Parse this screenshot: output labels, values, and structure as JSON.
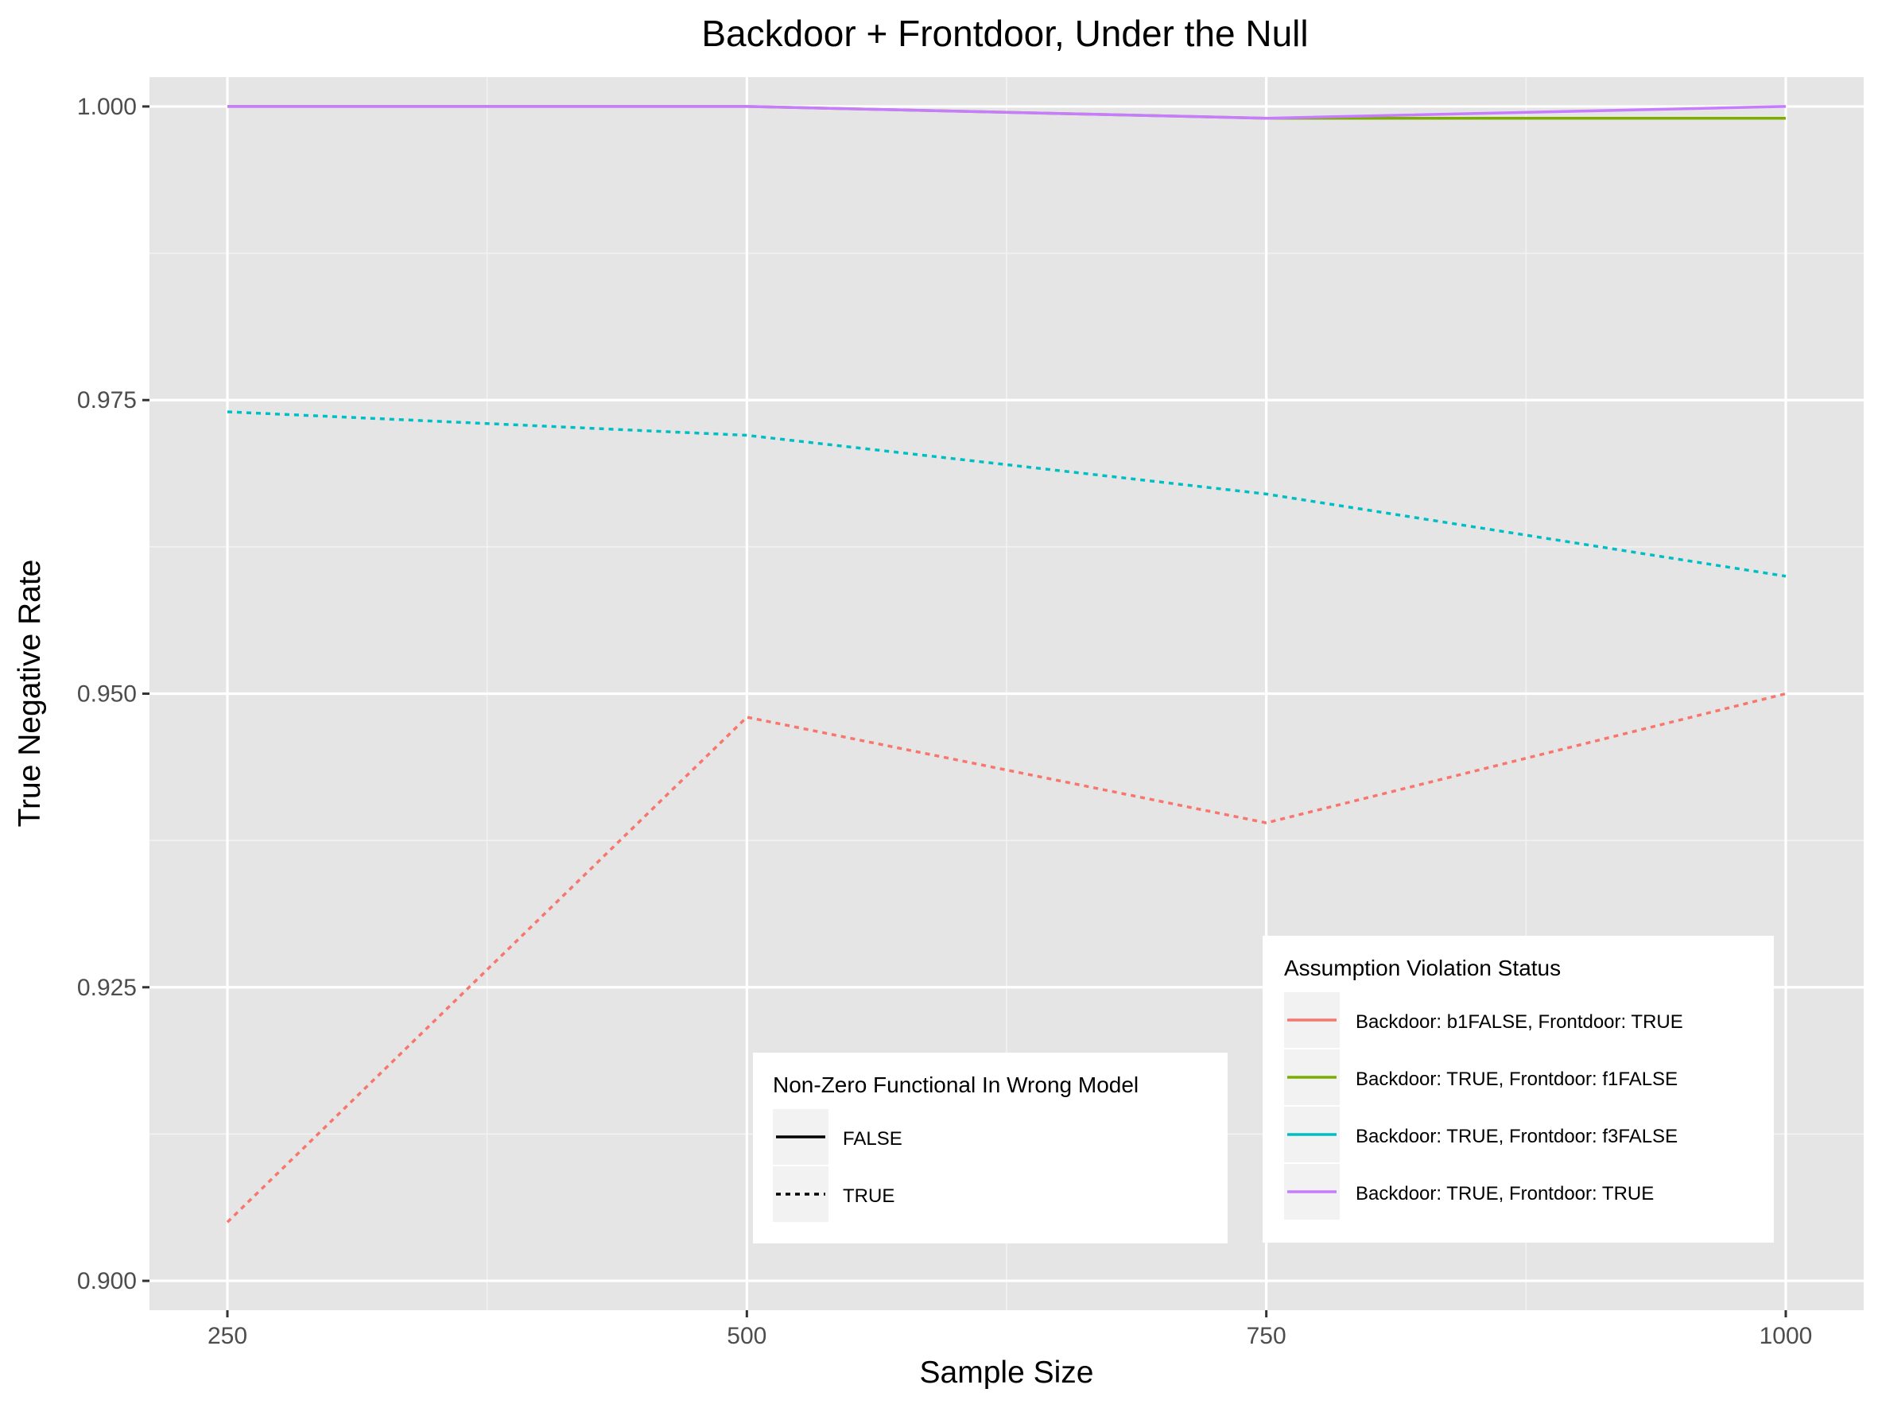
{
  "chart_data": {
    "type": "line",
    "title": "Backdoor + Frontdoor, Under the Null",
    "xlabel": "Sample Size",
    "ylabel": "True Negative Rate",
    "x": [
      250,
      500,
      750,
      1000
    ],
    "xlim": [
      212.5,
      1037.5
    ],
    "ylim": [
      0.8975,
      1.0025
    ],
    "x_ticks": [
      250,
      500,
      750,
      1000
    ],
    "x_tick_labels": [
      "250",
      "500",
      "750",
      "1000"
    ],
    "y_ticks": [
      0.9,
      0.925,
      0.95,
      0.975,
      1.0
    ],
    "y_tick_labels": [
      "0.900",
      "0.925",
      "0.950",
      "0.975",
      "1.000"
    ],
    "grid": true,
    "panel_background": "#e5e5e5",
    "series": [
      {
        "name": "Backdoor: b1FALSE, Frontdoor: TRUE",
        "color": "#F8766D",
        "linetype": "dotted",
        "values": [
          0.905,
          0.948,
          0.939,
          0.95
        ]
      },
      {
        "name": "Backdoor: TRUE, Frontdoor: f1FALSE",
        "color": "#7CAE00",
        "linetype": "solid",
        "values": [
          1.0,
          1.0,
          0.999,
          0.999
        ]
      },
      {
        "name": "Backdoor: TRUE, Frontdoor: f3FALSE",
        "color": "#00BFC4",
        "linetype": "dotted",
        "values": [
          0.974,
          0.972,
          0.967,
          0.96
        ]
      },
      {
        "name": "Backdoor: TRUE, Frontdoor: TRUE",
        "color": "#C77CFF",
        "linetype": "solid",
        "values": [
          1.0,
          1.0,
          0.999,
          1.0
        ]
      }
    ],
    "legends": {
      "color": {
        "title": "Assumption Violation Status",
        "placement": "bottom-right",
        "entries": [
          {
            "label": "Backdoor: b1FALSE, Frontdoor: TRUE",
            "color": "#F8766D"
          },
          {
            "label": "Backdoor: TRUE, Frontdoor: f1FALSE",
            "color": "#7CAE00"
          },
          {
            "label": "Backdoor: TRUE, Frontdoor: f3FALSE",
            "color": "#00BFC4"
          },
          {
            "label": "Backdoor: TRUE, Frontdoor: TRUE",
            "color": "#C77CFF"
          }
        ]
      },
      "linetype": {
        "title": "Non-Zero Functional In Wrong Model",
        "placement": "bottom-center",
        "entries": [
          {
            "label": "FALSE",
            "linetype": "solid"
          },
          {
            "label": "TRUE",
            "linetype": "dotted"
          }
        ]
      }
    }
  }
}
